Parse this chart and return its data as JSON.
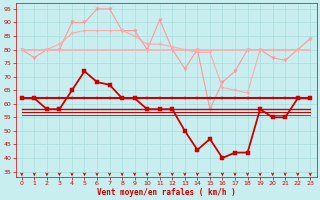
{
  "background_color": "#c8eef0",
  "grid_color": "#aadddd",
  "xlabel": "Vent moyen/en rafales ( km/h )",
  "xlabel_color": "#cc0000",
  "tick_color": "#cc0000",
  "ylim": [
    33,
    97
  ],
  "yticks": [
    35,
    40,
    45,
    50,
    55,
    60,
    65,
    70,
    75,
    80,
    85,
    90,
    95
  ],
  "xlim": [
    -0.5,
    23.5
  ],
  "xticks": [
    0,
    1,
    2,
    3,
    4,
    5,
    6,
    7,
    8,
    9,
    10,
    11,
    12,
    13,
    14,
    15,
    16,
    17,
    18,
    19,
    20,
    21,
    22,
    23
  ],
  "series": [
    {
      "label": "rafales_light1",
      "color": "#ff9999",
      "lw": 0.8,
      "marker": "v",
      "markersize": 2.5,
      "y": [
        80,
        77,
        80,
        80,
        90,
        90,
        95,
        95,
        87,
        87,
        80,
        91,
        80,
        73,
        80,
        58,
        68,
        72,
        80,
        80,
        77,
        76,
        80,
        84
      ]
    },
    {
      "label": "rafales_light2",
      "color": "#ffaaaa",
      "lw": 0.8,
      "marker": "v",
      "markersize": 2.0,
      "y": [
        80,
        80,
        80,
        82,
        86,
        87,
        87,
        87,
        87,
        85,
        82,
        82,
        81,
        80,
        79,
        79,
        66,
        65,
        64,
        80,
        80,
        80,
        80,
        84
      ]
    },
    {
      "label": "rafales_flat",
      "color": "#ffaaaa",
      "lw": 1.2,
      "marker": null,
      "markersize": 0,
      "y": [
        80,
        80,
        80,
        80,
        80,
        80,
        80,
        80,
        80,
        80,
        80,
        80,
        80,
        80,
        80,
        80,
        80,
        80,
        80,
        80,
        80,
        80,
        80,
        80
      ]
    },
    {
      "label": "vent_dark_markers",
      "color": "#cc0000",
      "lw": 1.3,
      "marker": "s",
      "markersize": 2.5,
      "y": [
        62,
        62,
        58,
        58,
        65,
        72,
        68,
        67,
        62,
        62,
        58,
        58,
        58,
        50,
        43,
        47,
        40,
        42,
        42,
        58,
        55,
        55,
        62,
        62
      ]
    },
    {
      "label": "vent_flat1",
      "color": "#cc0000",
      "lw": 1.5,
      "marker": "s",
      "markersize": 2.0,
      "y": [
        62,
        62,
        62,
        62,
        62,
        62,
        62,
        62,
        62,
        62,
        62,
        62,
        62,
        62,
        62,
        62,
        62,
        62,
        62,
        62,
        62,
        62,
        62,
        62
      ]
    },
    {
      "label": "vent_flat2",
      "color": "#cc0000",
      "lw": 1.0,
      "marker": null,
      "markersize": 0,
      "y": [
        58,
        58,
        58,
        58,
        58,
        58,
        58,
        58,
        58,
        58,
        58,
        58,
        58,
        58,
        58,
        58,
        58,
        58,
        58,
        58,
        58,
        58,
        58,
        58
      ]
    },
    {
      "label": "vent_flat3",
      "color": "#cc0000",
      "lw": 0.8,
      "marker": null,
      "markersize": 0,
      "y": [
        57,
        57,
        57,
        57,
        57,
        57,
        57,
        57,
        57,
        57,
        57,
        57,
        57,
        57,
        57,
        57,
        57,
        57,
        57,
        57,
        57,
        57,
        57,
        57
      ]
    },
    {
      "label": "vent_flat4",
      "color": "#cc0000",
      "lw": 0.6,
      "marker": null,
      "markersize": 0,
      "y": [
        56,
        56,
        56,
        56,
        56,
        56,
        56,
        56,
        56,
        56,
        56,
        56,
        56,
        56,
        56,
        56,
        56,
        56,
        56,
        56,
        56,
        56,
        56,
        56
      ]
    }
  ],
  "arrow_color": "#cc0000"
}
